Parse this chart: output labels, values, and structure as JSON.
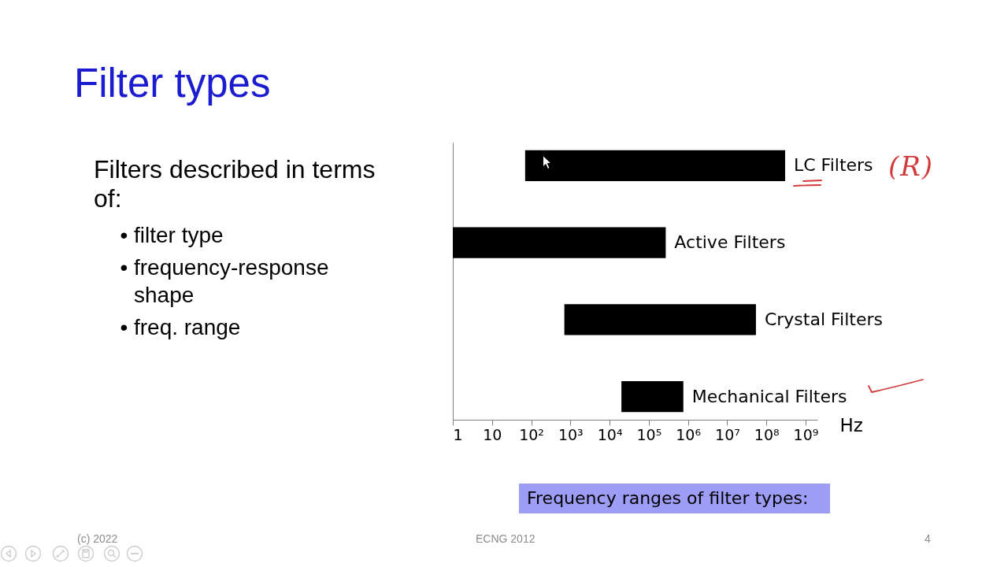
{
  "chart_data": {
    "type": "bar",
    "orientation": "horizontal",
    "title": "Filter types",
    "xlabel": "Hz",
    "categories": [
      "LC Filters",
      "Active Filters",
      "Crystal Filters",
      "Mechanical Filters"
    ],
    "base": [
      70,
      1,
      700,
      20000
    ],
    "values": [
      300000000,
      270000,
      54000000,
      740000
    ],
    "color": "#000000",
    "log": "x",
    "xlim": [
      1,
      2000000000
    ],
    "xticks": [
      1,
      10,
      {
        "value": 100,
        "label": "10²"
      },
      {
        "value": 1000,
        "label": "10³"
      },
      {
        "value": 10000,
        "label": "10⁴"
      },
      {
        "value": 100000,
        "label": "10⁵"
      },
      {
        "value": 1000000,
        "label": "10⁶"
      },
      {
        "value": 10000000,
        "label": "10⁷"
      },
      {
        "value": 100000000,
        "label": "10⁸"
      },
      {
        "value": 1000000000,
        "label": "10⁹"
      }
    ],
    "annotations": [
      "Filters described in terms of:",
      "• filter type",
      "• frequency-response shape",
      "• freq. range",
      "Frequency ranges of filter types:",
      "(c) 2022",
      "ECNG 2012",
      "4",
      "(R)"
    ]
  }
}
